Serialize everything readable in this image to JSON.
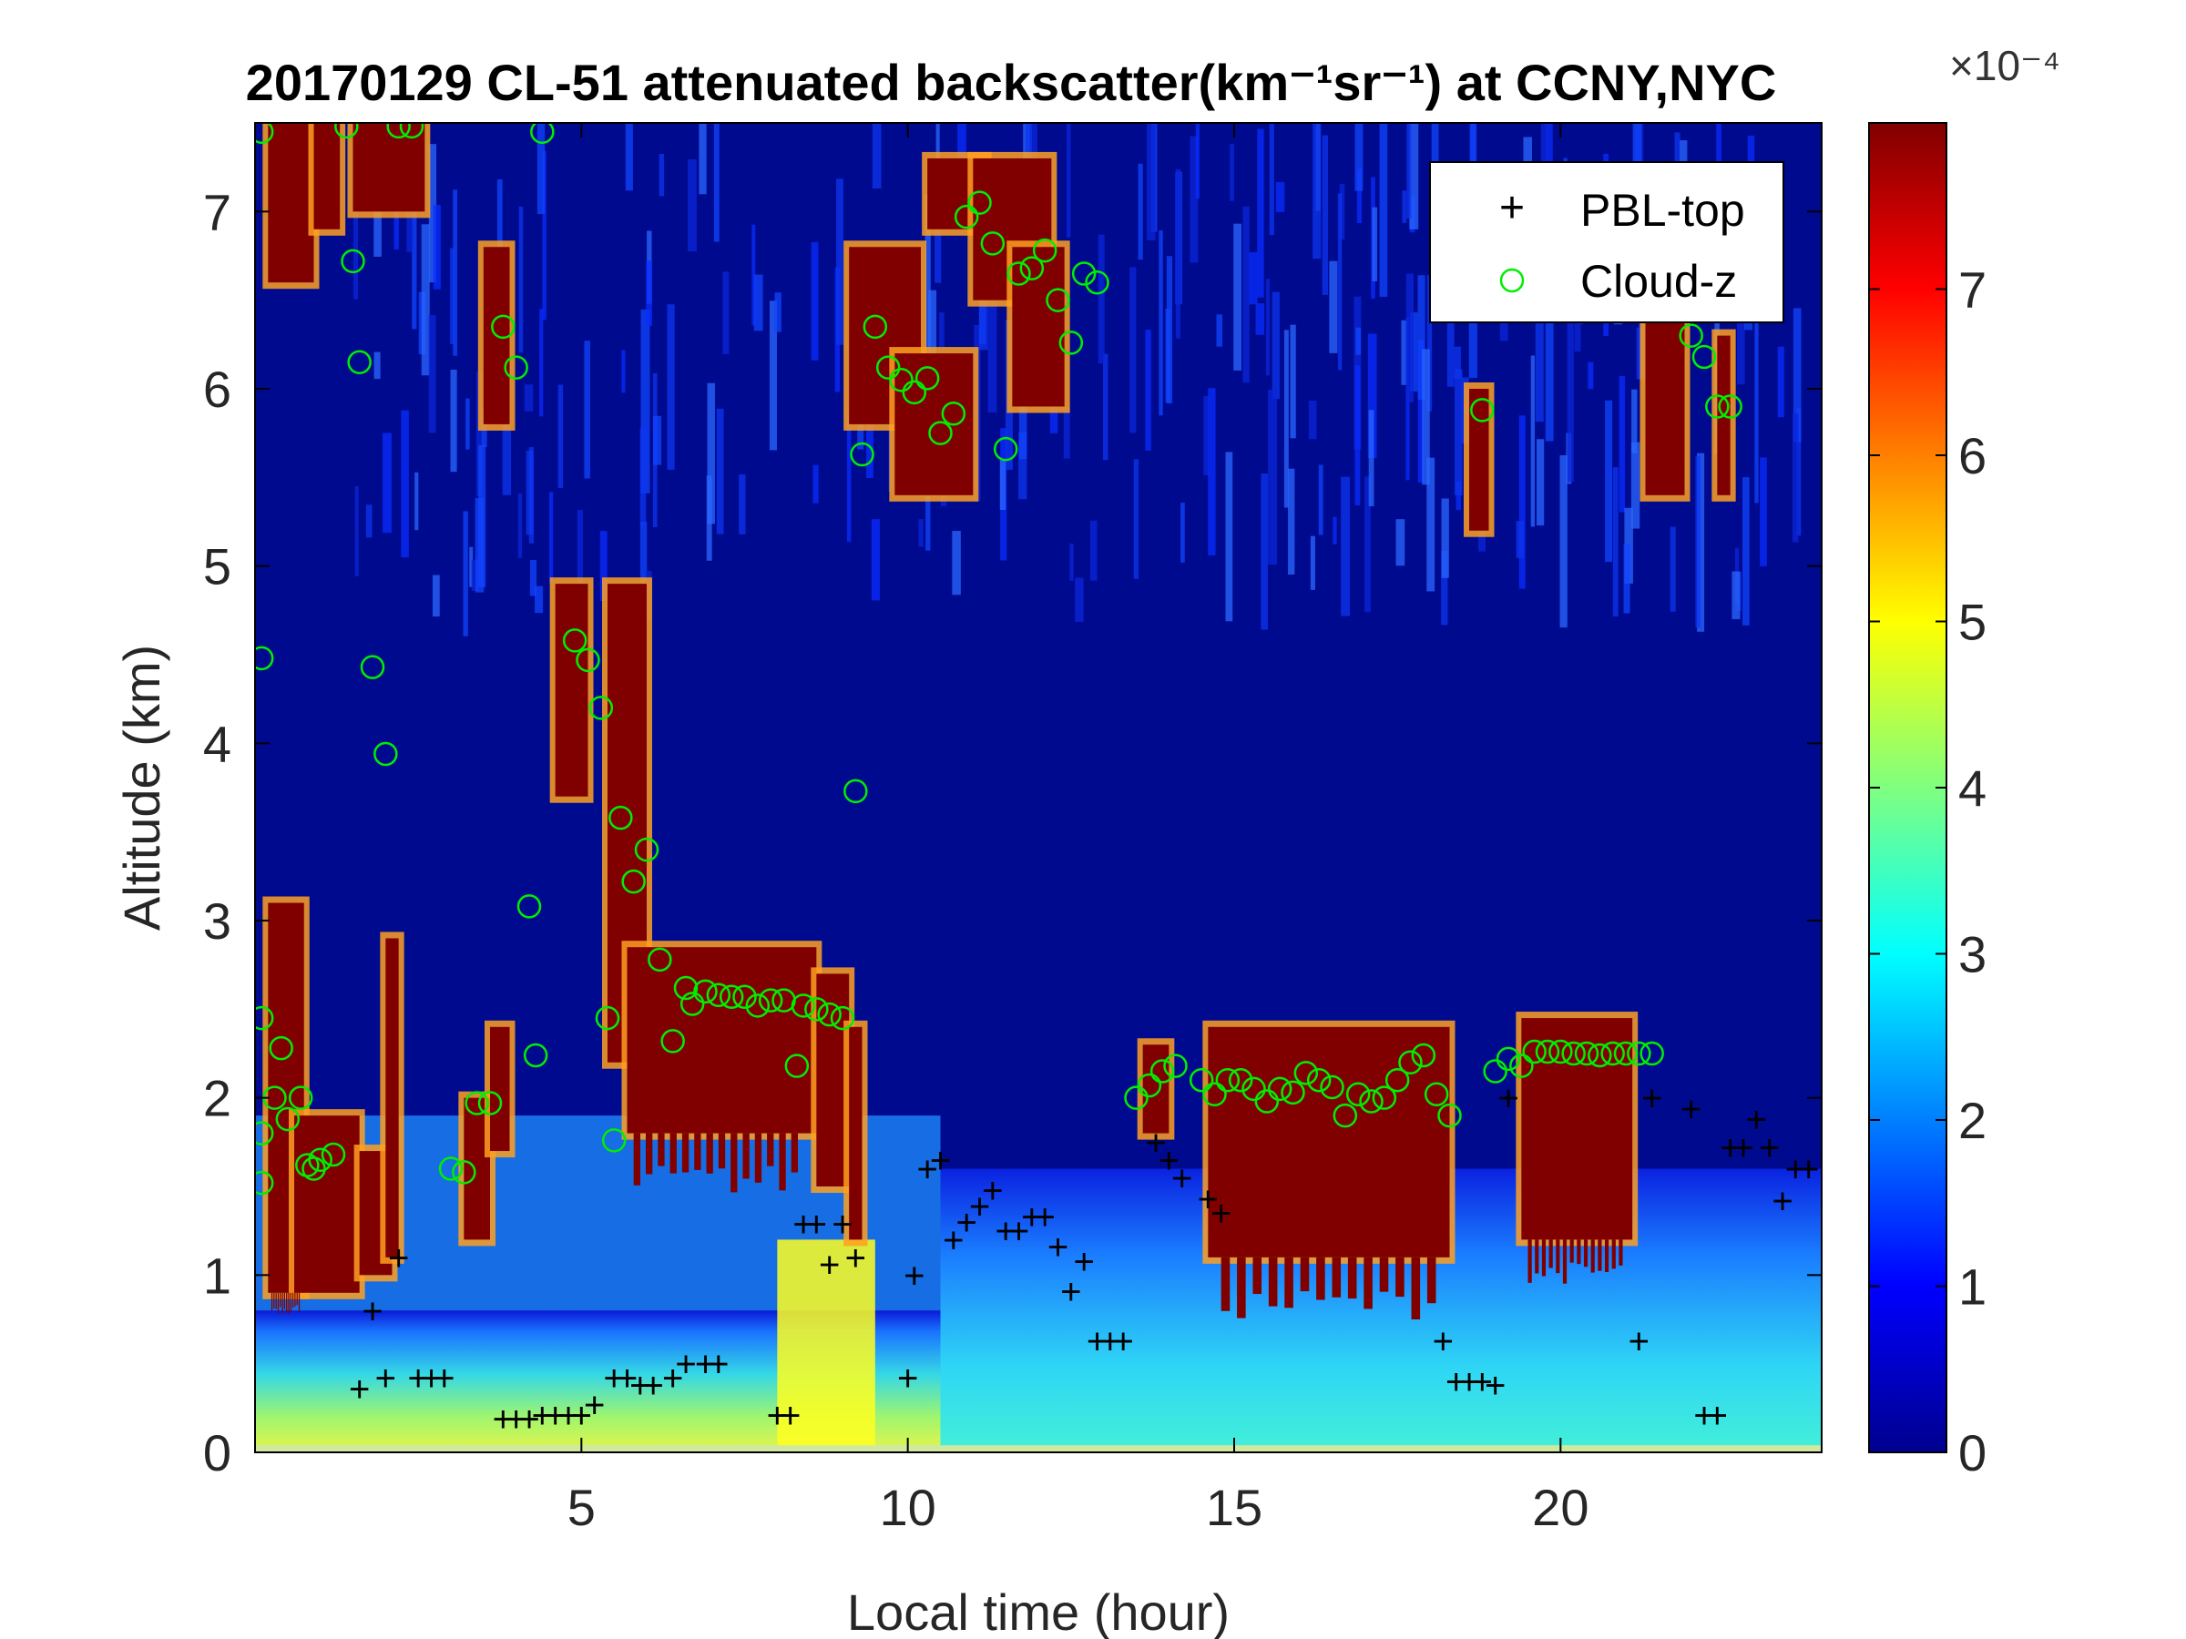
{
  "chart_data": {
    "type": "heatmap",
    "title": "20170129  CL-51 attenuated backscatter(km⁻¹sr⁻¹) at CCNY,NYC",
    "xlabel": "Local time (hour)",
    "ylabel": "Altitude (km)",
    "xlim": [
      0,
      24
    ],
    "ylim": [
      0,
      7.5
    ],
    "x_ticks": [
      5,
      10,
      15,
      20
    ],
    "y_ticks": [
      0,
      1,
      2,
      3,
      4,
      5,
      6,
      7
    ],
    "colorbar": {
      "multiplier": "×10⁻⁴",
      "range": [
        0,
        8
      ],
      "ticks": [
        0,
        1,
        2,
        3,
        4,
        5,
        6,
        7
      ],
      "colormap": "jet"
    },
    "legend": {
      "position": "top-right",
      "entries": [
        {
          "label": "PBL-top",
          "marker": "+",
          "color": "#000000"
        },
        {
          "label": "Cloud-z",
          "marker": "o",
          "color": "#00ee00"
        }
      ]
    },
    "series": [
      {
        "name": "PBL-top",
        "x": [
          1.6,
          1.8,
          2.0,
          2.2,
          2.5,
          2.7,
          2.9,
          3.8,
          4.0,
          4.2,
          4.4,
          4.6,
          4.8,
          5.0,
          5.2,
          5.5,
          5.7,
          5.9,
          6.1,
          6.4,
          6.6,
          6.9,
          7.1,
          8.0,
          8.2,
          8.4,
          8.6,
          8.8,
          9.0,
          9.2,
          10.0,
          10.1,
          10.3,
          10.5,
          10.7,
          10.9,
          11.1,
          11.3,
          11.5,
          11.7,
          11.9,
          12.1,
          12.3,
          12.5,
          12.7,
          12.9,
          13.1,
          13.3,
          13.8,
          14.0,
          14.2,
          14.6,
          14.8,
          18.2,
          18.4,
          18.6,
          18.8,
          19.0,
          19.2,
          21.2,
          21.4,
          22.0,
          22.2,
          22.4,
          22.6,
          22.8,
          23.0,
          23.2,
          23.4,
          23.6,
          23.8
        ],
        "y": [
          0.36,
          0.8,
          0.42,
          1.1,
          0.42,
          0.42,
          0.42,
          0.19,
          0.19,
          0.19,
          0.21,
          0.21,
          0.21,
          0.21,
          0.27,
          0.42,
          0.42,
          0.38,
          0.38,
          0.42,
          0.5,
          0.5,
          0.5,
          0.21,
          0.21,
          1.29,
          1.29,
          1.06,
          1.29,
          1.1,
          0.42,
          1.0,
          1.6,
          1.65,
          1.2,
          1.3,
          1.39,
          1.48,
          1.25,
          1.25,
          1.33,
          1.33,
          1.16,
          0.91,
          1.08,
          0.63,
          0.63,
          0.63,
          1.75,
          1.65,
          1.55,
          1.43,
          1.35,
          0.63,
          0.4,
          0.4,
          0.4,
          0.38,
          2.0,
          0.63,
          2.0,
          1.94,
          0.21,
          0.21,
          1.72,
          1.72,
          1.88,
          1.72,
          1.42,
          1.6,
          1.6
        ]
      },
      {
        "name": "Cloud-z",
        "x": [
          0.1,
          0.1,
          0.1,
          0.1,
          0.1,
          0.3,
          0.4,
          0.5,
          0.7,
          0.8,
          0.9,
          1.0,
          1.2,
          1.4,
          1.5,
          1.6,
          1.8,
          2.0,
          2.2,
          2.4,
          3.0,
          3.2,
          3.4,
          3.6,
          3.8,
          4.0,
          4.2,
          4.3,
          4.4,
          4.9,
          5.1,
          5.3,
          5.4,
          5.5,
          5.6,
          5.8,
          6.0,
          6.2,
          6.4,
          6.6,
          6.7,
          6.9,
          7.1,
          7.3,
          7.5,
          7.7,
          7.9,
          8.1,
          8.3,
          8.4,
          8.6,
          8.8,
          9.0,
          9.2,
          9.3,
          9.5,
          9.7,
          9.9,
          10.1,
          10.3,
          10.5,
          10.7,
          10.9,
          11.1,
          11.3,
          11.5,
          11.7,
          11.9,
          12.1,
          12.3,
          12.5,
          12.7,
          12.9,
          13.5,
          13.7,
          13.9,
          14.1,
          14.5,
          14.7,
          14.9,
          15.1,
          15.3,
          15.5,
          15.7,
          15.9,
          16.1,
          16.3,
          16.5,
          16.7,
          16.9,
          17.1,
          17.3,
          17.5,
          17.7,
          17.9,
          18.1,
          18.3,
          18.8,
          19.0,
          19.2,
          19.4,
          19.6,
          19.8,
          20.0,
          20.2,
          20.4,
          20.6,
          20.8,
          21.0,
          21.2,
          21.4,
          22.0,
          22.2,
          22.4,
          22.6
        ],
        "y": [
          7.45,
          4.48,
          2.45,
          1.8,
          1.52,
          2.0,
          2.28,
          1.88,
          2.0,
          1.62,
          1.6,
          1.65,
          1.68,
          7.48,
          6.72,
          6.15,
          4.43,
          3.94,
          7.48,
          7.48,
          1.6,
          1.58,
          1.97,
          1.97,
          6.35,
          6.12,
          3.08,
          2.24,
          7.45,
          4.58,
          4.47,
          4.2,
          2.45,
          1.76,
          3.58,
          3.22,
          3.4,
          2.78,
          2.32,
          2.62,
          2.53,
          2.6,
          2.58,
          2.57,
          2.57,
          2.52,
          2.55,
          2.55,
          2.18,
          2.52,
          2.5,
          2.47,
          2.45,
          3.73,
          5.63,
          6.35,
          6.12,
          6.05,
          5.98,
          6.06,
          5.75,
          5.86,
          6.97,
          7.05,
          6.82,
          5.66,
          6.65,
          6.68,
          6.78,
          6.5,
          6.26,
          6.65,
          6.6,
          2.0,
          2.07,
          2.15,
          2.18,
          2.1,
          2.02,
          2.1,
          2.1,
          2.05,
          1.98,
          2.05,
          2.03,
          2.14,
          2.1,
          2.06,
          1.9,
          2.02,
          1.98,
          2.0,
          2.1,
          2.2,
          2.24,
          2.02,
          1.9,
          5.88,
          2.15,
          2.22,
          2.18,
          2.26,
          2.26,
          2.26,
          2.25,
          2.25,
          2.24,
          2.25,
          2.25,
          2.25,
          2.25,
          6.3,
          6.18,
          5.9,
          5.9
        ]
      }
    ]
  }
}
